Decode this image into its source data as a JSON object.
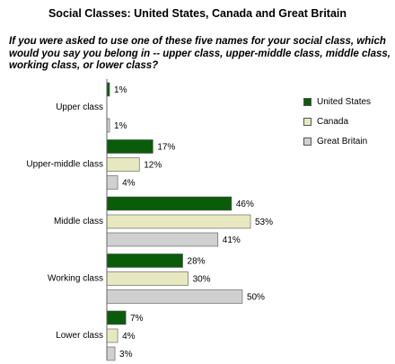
{
  "title": "Social Classes: United States, Canada and Great Britain",
  "question": "If you were asked to use one of these five names for your social class, which would you say you belong in -- upper class, upper-middle class, middle class, working class, or lower class?",
  "chart_data": {
    "type": "bar",
    "orientation": "horizontal",
    "categories": [
      "Upper class",
      "Upper-middle class",
      "Middle class",
      "Working class",
      "Lower class"
    ],
    "series": [
      {
        "name": "United States",
        "values": [
          1,
          17,
          46,
          28,
          7
        ],
        "labels": [
          "1%",
          "17%",
          "46%",
          "28%",
          "7%"
        ],
        "color": "#0a5c0a"
      },
      {
        "name": "Canada",
        "values": [
          null,
          12,
          53,
          30,
          4
        ],
        "labels": [
          "",
          "12%",
          "53%",
          "30%",
          "4%"
        ],
        "color": "#e8e8c0"
      },
      {
        "name": "Great Britain",
        "values": [
          1,
          4,
          41,
          50,
          3
        ],
        "labels": [
          "1%",
          "4%",
          "41%",
          "50%",
          "3%"
        ],
        "color": "#d0d0d0"
      }
    ],
    "xlim": [
      0,
      60
    ],
    "grid": false,
    "legend_position": "right"
  }
}
